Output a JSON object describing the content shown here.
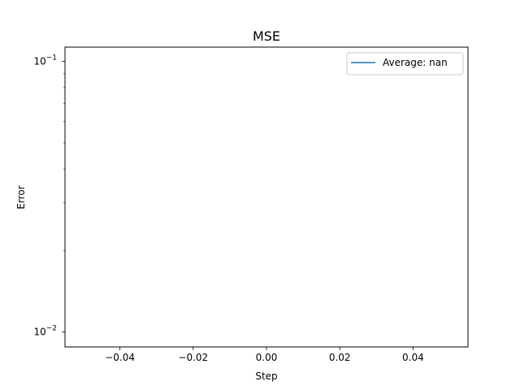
{
  "chart_data": {
    "type": "line",
    "title": "MSE",
    "xlabel": "Step",
    "ylabel": "Error",
    "xlim": [
      -0.055,
      0.055
    ],
    "ylim": [
      0.0088,
      0.113
    ],
    "yscale": "log",
    "grid": false,
    "legend_placement": "top-right",
    "x_ticks": [
      {
        "value": -0.04,
        "label": "−0.04"
      },
      {
        "value": -0.02,
        "label": "−0.02"
      },
      {
        "value": 0.0,
        "label": "0.00"
      },
      {
        "value": 0.02,
        "label": "0.02"
      },
      {
        "value": 0.04,
        "label": "0.04"
      }
    ],
    "y_major_ticks": [
      {
        "value": 0.01,
        "base": "10",
        "exp": "−2"
      },
      {
        "value": 0.1,
        "base": "10",
        "exp": "−1"
      }
    ],
    "y_minor_ticks": [
      0.02,
      0.03,
      0.04,
      0.05,
      0.06,
      0.07,
      0.08,
      0.09
    ],
    "series": [
      {
        "name": "Average: nan",
        "color": "#1f77b4",
        "x": [],
        "y": []
      }
    ]
  }
}
